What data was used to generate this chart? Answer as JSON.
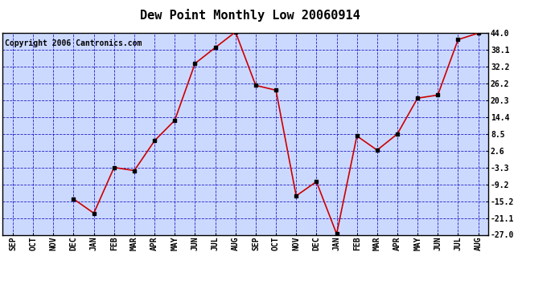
{
  "title": "Dew Point Monthly Low 20060914",
  "copyright": "Copyright 2006 Cantronics.com",
  "x_labels": [
    "SEP",
    "OCT",
    "NOV",
    "DEC",
    "JAN",
    "FEB",
    "MAR",
    "APR",
    "MAY",
    "JUN",
    "JUL",
    "AUG",
    "SEP",
    "OCT",
    "NOV",
    "DEC",
    "JAN",
    "FEB",
    "MAR",
    "APR",
    "MAY",
    "JUN",
    "JUL",
    "AUG"
  ],
  "y_values": [
    null,
    null,
    null,
    -14.4,
    -19.4,
    -3.3,
    -4.4,
    6.1,
    13.3,
    33.3,
    38.9,
    44.4,
    25.6,
    23.9,
    -13.3,
    -8.3,
    -26.7,
    7.8,
    2.8,
    8.5,
    21.1,
    22.2,
    41.7,
    44.0
  ],
  "y_ticks": [
    44.0,
    38.1,
    32.2,
    26.2,
    20.3,
    14.4,
    8.5,
    2.6,
    -3.3,
    -9.2,
    -15.2,
    -21.1,
    -27.0
  ],
  "y_min": -27.0,
  "y_max": 44.0,
  "line_color": "#cc0000",
  "marker_color": "#000000",
  "bg_color": "#ccd9ff",
  "grid_color": "#0000bb",
  "border_color": "#000000",
  "title_fontsize": 11,
  "copyright_fontsize": 7,
  "tick_fontsize": 7
}
